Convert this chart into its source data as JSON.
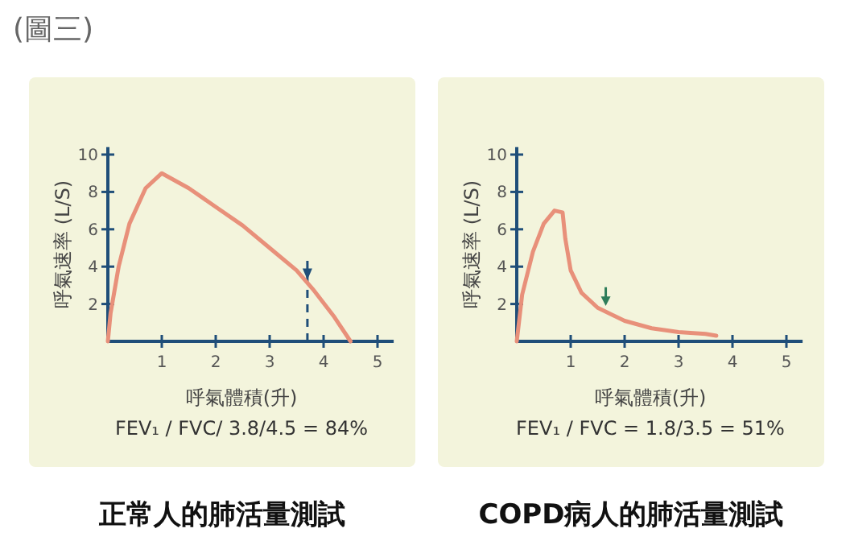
{
  "chart_data": [
    {
      "type": "line",
      "title": "正常人的肺活量測試",
      "xlabel": "呼氣體積(升)",
      "ylabel": "呼氣速率 (L/S)",
      "annotations": [
        "(圖三)",
        "FEV₁ / FVC/ 3.8/4.5 = 84%"
      ],
      "series": [
        {
          "color": "#e8907a",
          "x": [
            0,
            0.05,
            0.2,
            0.4,
            0.7,
            1,
            1.5,
            2,
            2.5,
            3,
            3.5,
            3.8,
            4.2,
            4.5
          ],
          "values": [
            0,
            1.5,
            4,
            6.3,
            8.2,
            9,
            8.2,
            7.2,
            6.2,
            5,
            3.8,
            2.8,
            1.3,
            0
          ]
        }
      ],
      "ref_lines": [
        {
          "axis": "x",
          "value": 3.7,
          "color": "#1f4e79",
          "line_style": "dashed"
        }
      ],
      "xlim": [
        0,
        5.3
      ],
      "ylim": [
        0,
        10.4
      ],
      "xticks": [
        1,
        2,
        3,
        4,
        5
      ],
      "yticks": [
        2,
        4,
        6,
        8,
        10
      ],
      "grid": false,
      "marker": "none",
      "line_style": "solid"
    },
    {
      "type": "line",
      "title": "COPD病人的肺活量測試",
      "xlabel": "呼氣體積(升)",
      "ylabel": "呼氣速率 (L/S)",
      "annotations": [
        "FEV₁ / FVC = 1.8/3.5 = 51%"
      ],
      "series": [
        {
          "color": "#e8907a",
          "x": [
            0,
            0.1,
            0.3,
            0.5,
            0.7,
            0.85,
            0.9,
            1.0,
            1.2,
            1.5,
            2,
            2.5,
            3,
            3.5,
            3.7
          ],
          "values": [
            0,
            2.5,
            4.8,
            6.3,
            7,
            6.9,
            5.5,
            3.8,
            2.6,
            1.8,
            1.1,
            0.7,
            0.5,
            0.4,
            0.3
          ]
        }
      ],
      "xlim": [
        0,
        5.3
      ],
      "ylim": [
        0,
        10.4
      ],
      "xticks": [
        1,
        2,
        3,
        4,
        5
      ],
      "yticks": [
        2,
        4,
        6,
        8,
        10
      ],
      "grid": false,
      "marker": "none",
      "line_style": "solid"
    }
  ]
}
